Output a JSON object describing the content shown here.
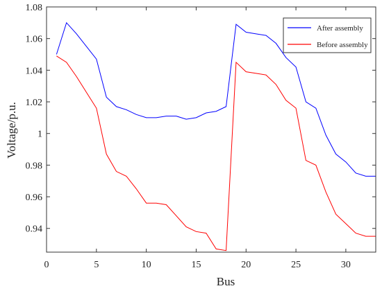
{
  "chart_data": {
    "type": "line",
    "title": "",
    "xlabel": "Bus",
    "ylabel": "Voltage/p.u.",
    "xlim": [
      0,
      33
    ],
    "ylim": [
      0.925,
      1.08
    ],
    "xticks": [
      0,
      5,
      10,
      15,
      20,
      25,
      30
    ],
    "yticks": [
      0.94,
      0.96,
      0.98,
      1.0,
      1.02,
      1.04,
      1.06,
      1.08
    ],
    "xtick_labels": [
      "0",
      "5",
      "10",
      "15",
      "20",
      "25",
      "30"
    ],
    "ytick_labels": [
      "0.94",
      "0.96",
      "0.98",
      "1",
      "1.02",
      "1.04",
      "1.06",
      "1.08"
    ],
    "grid": false,
    "legend_position": "top-right",
    "x": [
      1,
      2,
      3,
      4,
      5,
      6,
      7,
      8,
      9,
      10,
      11,
      12,
      13,
      14,
      15,
      16,
      17,
      18,
      19,
      20,
      21,
      22,
      23,
      24,
      25,
      26,
      27,
      28,
      29,
      30,
      31,
      32,
      33
    ],
    "series": [
      {
        "name": "After assembly",
        "color": "#0000ff",
        "values": [
          1.05,
          1.07,
          1.063,
          1.055,
          1.047,
          1.023,
          1.017,
          1.015,
          1.012,
          1.01,
          1.01,
          1.011,
          1.011,
          1.009,
          1.01,
          1.013,
          1.014,
          1.017,
          1.069,
          1.064,
          1.063,
          1.062,
          1.057,
          1.048,
          1.042,
          1.02,
          1.016,
          0.999,
          0.987,
          0.982,
          0.975,
          0.973,
          0.973
        ]
      },
      {
        "name": "Before assembly",
        "color": "#ff0000",
        "values": [
          1.049,
          1.045,
          1.036,
          1.026,
          1.016,
          0.987,
          0.976,
          0.973,
          0.965,
          0.956,
          0.956,
          0.955,
          0.948,
          0.941,
          0.938,
          0.937,
          0.927,
          0.926,
          1.045,
          1.039,
          1.038,
          1.037,
          1.031,
          1.021,
          1.016,
          0.983,
          0.98,
          0.963,
          0.949,
          0.943,
          0.937,
          0.935,
          0.935
        ]
      }
    ]
  }
}
